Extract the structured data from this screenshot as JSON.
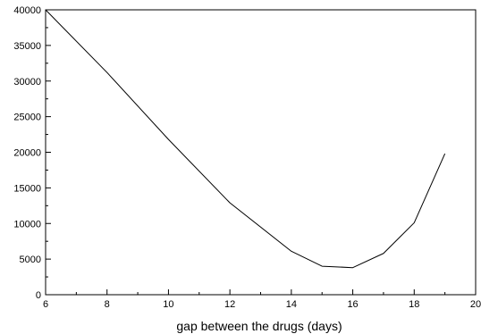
{
  "chart_data": {
    "type": "line",
    "title": "",
    "xlabel": "gap between the drugs (days)",
    "ylabel": "",
    "xlim": [
      6,
      20
    ],
    "ylim": [
      0,
      40000
    ],
    "grid": false,
    "x_ticks": [
      6,
      8,
      10,
      12,
      14,
      16,
      18,
      20
    ],
    "x_tick_labels": [
      "6",
      "8",
      "10",
      "12",
      "14",
      "16",
      "18",
      "20"
    ],
    "y_ticks": [
      0,
      5000,
      10000,
      15000,
      20000,
      25000,
      30000,
      35000,
      40000
    ],
    "y_tick_labels": [
      "0",
      "5000",
      "10000",
      "15000",
      "20000",
      "25000",
      "30000",
      "35000",
      "40000"
    ],
    "series": [
      {
        "x": [
          6,
          8,
          10,
          12,
          14,
          15,
          16,
          17,
          18,
          19
        ],
        "y": [
          40000,
          31200,
          21800,
          12900,
          6100,
          4000,
          3800,
          5800,
          10100,
          19800
        ],
        "color": "#000000"
      }
    ]
  }
}
